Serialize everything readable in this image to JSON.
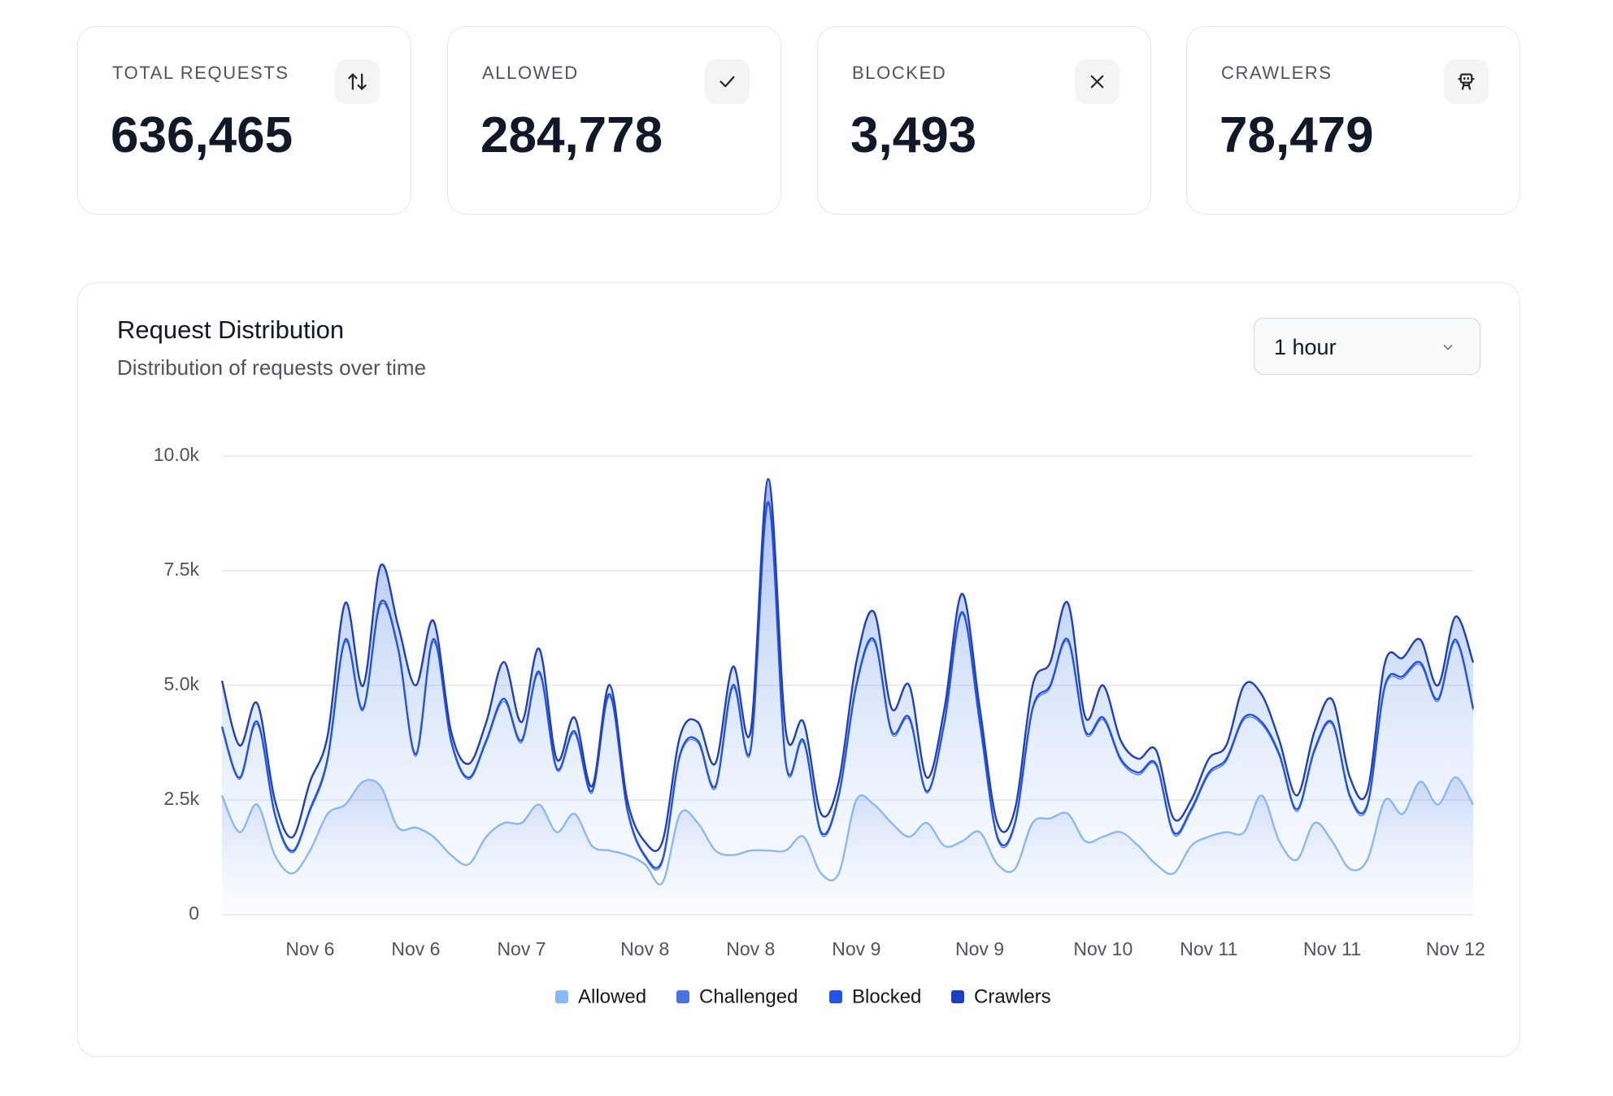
{
  "cards": [
    {
      "label": "TOTAL REQUESTS",
      "value": "636,465"
    },
    {
      "label": "ALLOWED",
      "value": "284,778"
    },
    {
      "label": "BLOCKED",
      "value": "3,493"
    },
    {
      "label": "CRAWLERS",
      "value": "78,479"
    }
  ],
  "dropdown": "1 hour",
  "chart_data": {
    "type": "area",
    "stacked": true,
    "title": "Request Distribution",
    "subtitle": "Distribution of requests over time",
    "categories": [
      null,
      null,
      null,
      null,
      null,
      "Nov 6",
      null,
      null,
      null,
      null,
      null,
      "Nov 6",
      null,
      null,
      null,
      null,
      null,
      "Nov 7",
      null,
      null,
      null,
      null,
      null,
      null,
      "Nov 8",
      null,
      null,
      null,
      null,
      null,
      "Nov 8",
      null,
      null,
      null,
      null,
      null,
      "Nov 9",
      null,
      null,
      null,
      null,
      null,
      null,
      "Nov 9",
      null,
      null,
      null,
      null,
      null,
      null,
      "Nov 10",
      null,
      null,
      null,
      null,
      null,
      "Nov 11",
      null,
      null,
      null,
      null,
      null,
      null,
      "Nov 11",
      null,
      null,
      null,
      null,
      null,
      null,
      "Nov 12",
      null
    ],
    "series": [
      {
        "name": "Allowed",
        "color": "#8ab8f2",
        "values": [
          2600,
          1800,
          2400,
          1300,
          900,
          1400,
          2200,
          2400,
          2900,
          2800,
          1900,
          1900,
          1700,
          1300,
          1100,
          1700,
          2000,
          2000,
          2400,
          1800,
          2200,
          1500,
          1400,
          1300,
          1100,
          700,
          2200,
          2000,
          1400,
          1300,
          1400,
          1400,
          1400,
          1700,
          900,
          900,
          2500,
          2400,
          2000,
          1700,
          2000,
          1500,
          1600,
          1800,
          1100,
          1000,
          2000,
          2100,
          2200,
          1600,
          1700,
          1800,
          1500,
          1100,
          900,
          1500,
          1700,
          1800,
          1800,
          2600,
          1600,
          1200,
          2000,
          1600,
          1000,
          1200,
          2500,
          2200,
          2900,
          2400,
          3000,
          2400
        ]
      },
      {
        "name": "Challenged",
        "color": "#4a72e0",
        "values": [
          1450,
          1150,
          1750,
          850,
          450,
          850,
          1150,
          3550,
          1550,
          3950,
          3850,
          1550,
          4250,
          2450,
          1850,
          2050,
          2650,
          1750,
          2850,
          1350,
          1750,
          1150,
          3350,
          950,
          150,
          450,
          1250,
          1750,
          1350,
          3650,
          2150,
          7550,
          1850,
          2050,
          850,
          1650,
          2450,
          3550,
          1950,
          2550,
          650,
          2650,
          4950,
          2350,
          550,
          950,
          2450,
          2850,
          3750,
          2350,
          2550,
          1550,
          1550,
          2150,
          850,
          750,
          1350,
          1550,
          2450,
          1550,
          1850,
          1050,
          1550,
          2550,
          1550,
          1150,
          2450,
          2950,
          2550,
          2250,
          2950,
          2050
        ]
      },
      {
        "name": "Blocked",
        "color": "#2353e6",
        "values": [
          50,
          40,
          60,
          50,
          40,
          50,
          60,
          50,
          40,
          60,
          50,
          50,
          60,
          50,
          40,
          50,
          60,
          50,
          50,
          40,
          50,
          50,
          60,
          50,
          40,
          50,
          50,
          50,
          50,
          60,
          50,
          50,
          50,
          50,
          50,
          50,
          60,
          50,
          50,
          50,
          40,
          50,
          50,
          60,
          50,
          50,
          50,
          50,
          50,
          50,
          50,
          50,
          50,
          40,
          50,
          50,
          50,
          50,
          50,
          50,
          50,
          50,
          50,
          40,
          50,
          50,
          50,
          50,
          50,
          50,
          50,
          50
        ]
      },
      {
        "name": "Crawlers",
        "color": "#1e3fbf",
        "values": [
          1000,
          700,
          400,
          300,
          300,
          600,
          500,
          800,
          500,
          800,
          500,
          1500,
          400,
          200,
          300,
          400,
          800,
          400,
          500,
          200,
          300,
          100,
          200,
          200,
          300,
          400,
          400,
          400,
          500,
          400,
          400,
          500,
          700,
          400,
          400,
          300,
          500,
          600,
          500,
          700,
          300,
          300,
          400,
          300,
          300,
          300,
          500,
          500,
          800,
          300,
          700,
          400,
          300,
          300,
          300,
          200,
          300,
          300,
          700,
          600,
          300,
          300,
          400,
          500,
          400,
          300,
          500,
          400,
          500,
          300,
          500,
          1000
        ]
      }
    ],
    "ylim": [
      0,
      10000
    ],
    "yticks": [
      0,
      {
        "value": 2500,
        "label": "2.5k"
      },
      {
        "value": 5000,
        "label": "5.0k"
      },
      {
        "value": 7500,
        "label": "7.5k"
      },
      {
        "value": 10000,
        "label": "10.0k"
      }
    ],
    "grid": true,
    "legend": "bottom"
  }
}
